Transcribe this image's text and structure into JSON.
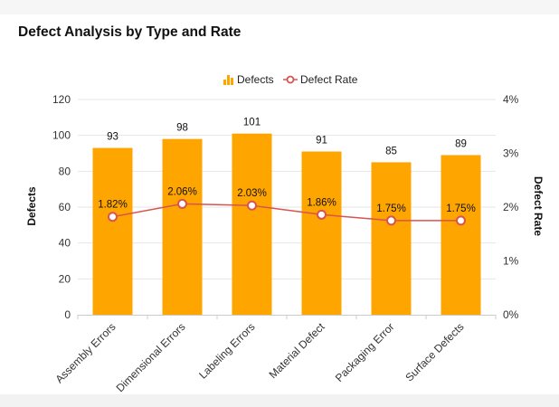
{
  "chart_data": {
    "type": "bar",
    "title": "Defect Analysis by Type and Rate",
    "categories": [
      "Assembly Errors",
      "Dimensional Errors",
      "Labeling Errors",
      "Material Defect",
      "Packaging Error",
      "Surface Defects"
    ],
    "series": [
      {
        "name": "Defects",
        "type": "bar",
        "axis": "left",
        "color": "#FFA500",
        "values": [
          93,
          98,
          101,
          91,
          85,
          89
        ],
        "labels": [
          "93",
          "98",
          "101",
          "91",
          "85",
          "89"
        ]
      },
      {
        "name": "Defect Rate",
        "type": "line",
        "axis": "right",
        "color": "#D9534F",
        "values": [
          1.82,
          2.06,
          2.03,
          1.86,
          1.75,
          1.75
        ],
        "labels": [
          "1.82%",
          "2.06%",
          "2.03%",
          "1.86%",
          "1.75%",
          "1.75%"
        ]
      }
    ],
    "ylabel": "Defects",
    "y2label": "Defect Rate",
    "ylim": [
      0,
      120
    ],
    "y2lim": [
      0,
      4
    ],
    "yticks": [
      "0",
      "20",
      "40",
      "60",
      "80",
      "100",
      "120"
    ],
    "y2ticks": [
      "0%",
      "1%",
      "2%",
      "3%",
      "4%"
    ],
    "legend": [
      "Defects",
      "Defect Rate"
    ],
    "legend_position": "top",
    "grid": true
  }
}
